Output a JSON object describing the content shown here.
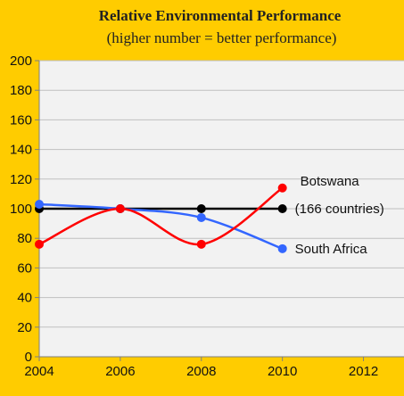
{
  "chart_data": {
    "type": "line",
    "title": "Relative Environmental Performance",
    "subtitle": "(higher  number = better performance)",
    "xlim": [
      2004,
      2013
    ],
    "ylim": [
      0,
      200
    ],
    "x_ticks": [
      "2004",
      "2006",
      "2008",
      "2010",
      "2012"
    ],
    "y_ticks": [
      "0",
      "20",
      "40",
      "60",
      "80",
      "100",
      "120",
      "140",
      "160",
      "180",
      "200"
    ],
    "grid": "horizontal",
    "series": [
      {
        "name": "Botswana",
        "color": "#FF0000",
        "x": [
          2004,
          2006,
          2008,
          2010
        ],
        "values": [
          76,
          100,
          76,
          114
        ]
      },
      {
        "name": "(166 countries)",
        "color": "#000000",
        "x": [
          2004,
          2006,
          2008,
          2010
        ],
        "values": [
          100,
          100,
          100,
          100
        ]
      },
      {
        "name": "South Africa",
        "color": "#3366FF",
        "x": [
          2004,
          2006,
          2008,
          2010
        ],
        "values": [
          103,
          100,
          94,
          73
        ]
      }
    ]
  }
}
